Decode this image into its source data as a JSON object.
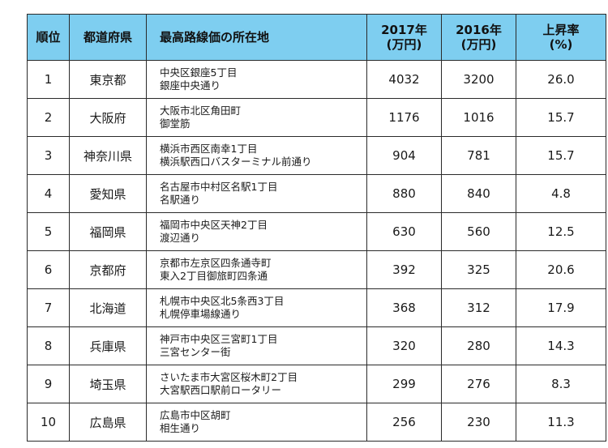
{
  "header": {
    "rank": "順位",
    "prefecture": "都道府県",
    "location": "最高路線価の所在地",
    "y2017": [
      "2017年",
      "(万円)"
    ],
    "y2016": [
      "2016年",
      "(万円)"
    ],
    "rate": [
      "上昇率",
      "(%)"
    ]
  },
  "colors": {
    "header_bg": "#7ecef0",
    "border": "#2a2a2a"
  },
  "rows": [
    {
      "rank": "1",
      "pref": "東京都",
      "loc1": "中央区銀座5丁目",
      "loc2": "銀座中央通り",
      "v2017": "4032",
      "v2016": "3200",
      "rate": "26.0"
    },
    {
      "rank": "2",
      "pref": "大阪府",
      "loc1": "大阪市北区角田町",
      "loc2": "御堂筋",
      "v2017": "1176",
      "v2016": "1016",
      "rate": "15.7"
    },
    {
      "rank": "3",
      "pref": "神奈川県",
      "loc1": "横浜市西区南幸1丁目",
      "loc2": "横浜駅西口バスターミナル前通り",
      "v2017": "904",
      "v2016": "781",
      "rate": "15.7"
    },
    {
      "rank": "4",
      "pref": "愛知県",
      "loc1": "名古屋市中村区名駅1丁目",
      "loc2": "名駅通り",
      "v2017": "880",
      "v2016": "840",
      "rate": "4.8"
    },
    {
      "rank": "5",
      "pref": "福岡県",
      "loc1": "福岡市中央区天神2丁目",
      "loc2": "渡辺通り",
      "v2017": "630",
      "v2016": "560",
      "rate": "12.5"
    },
    {
      "rank": "6",
      "pref": "京都府",
      "loc1": "京都市左京区四条通寺町",
      "loc2": "東入2丁目御旅町四条通",
      "v2017": "392",
      "v2016": "325",
      "rate": "20.6"
    },
    {
      "rank": "7",
      "pref": "北海道",
      "loc1": "札幌市中央区北5条西3丁目",
      "loc2": "札幌停車場線通り",
      "v2017": "368",
      "v2016": "312",
      "rate": "17.9"
    },
    {
      "rank": "8",
      "pref": "兵庫県",
      "loc1": "神戸市中央区三宮町1丁目",
      "loc2": "三宮センター街",
      "v2017": "320",
      "v2016": "280",
      "rate": "14.3"
    },
    {
      "rank": "9",
      "pref": "埼玉県",
      "loc1": "さいたま市大宮区桜木町2丁目",
      "loc2": "大宮駅西口駅前ロータリー",
      "v2017": "299",
      "v2016": "276",
      "rate": "8.3"
    },
    {
      "rank": "10",
      "pref": "広島県",
      "loc1": "広島市中区胡町",
      "loc2": "相生通り",
      "v2017": "256",
      "v2016": "230",
      "rate": "11.3"
    }
  ]
}
